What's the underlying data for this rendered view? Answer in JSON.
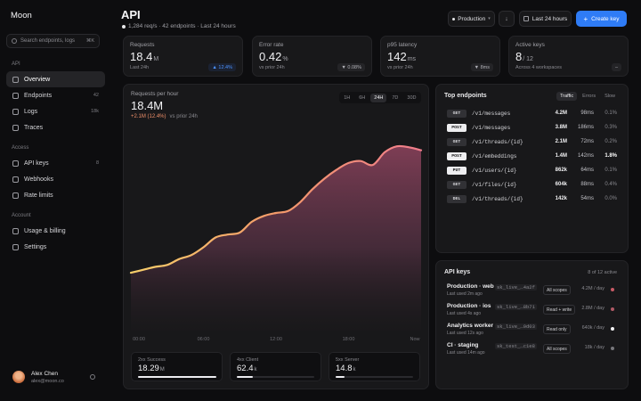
{
  "sidebar": {
    "brand": "Moon",
    "search": "Search endpoints, logs",
    "search_shortcut": "⌘K",
    "sections": [
      {
        "label": "API",
        "items": [
          {
            "label": "Overview",
            "active": true
          },
          {
            "label": "Endpoints",
            "badge": "42"
          },
          {
            "label": "Logs",
            "badge": "18k"
          },
          {
            "label": "Traces"
          }
        ]
      },
      {
        "label": "Access",
        "items": [
          {
            "label": "API keys",
            "badge": "8"
          },
          {
            "label": "Webhooks"
          },
          {
            "label": "Rate limits"
          }
        ]
      },
      {
        "label": "Account",
        "items": [
          {
            "label": "Usage & billing"
          },
          {
            "label": "Settings"
          }
        ]
      }
    ],
    "user": {
      "name": "Alex Chen",
      "email": "alex@moon.co"
    }
  },
  "header": {
    "title": "API",
    "subtitle": "1,284 req/s · 42 endpoints · Last 24 hours",
    "environment": "Production",
    "range": "Last 24 hours",
    "create": "Create key"
  },
  "kpis": [
    {
      "label": "Requests",
      "value": "18.4",
      "unit": "M",
      "note": "Last 24h",
      "delta": "▲ 12.4%",
      "trend": "up"
    },
    {
      "label": "Error rate",
      "value": "0.42",
      "unit": "%",
      "note": "vs prior 24h",
      "delta": "▼ 0.08%",
      "trend": "down"
    },
    {
      "label": "p95 latency",
      "value": "142",
      "unit": "ms",
      "note": "vs prior 24h",
      "delta": "▼ 8ms",
      "trend": "down"
    },
    {
      "label": "Active keys",
      "value": "8",
      "unit": "/ 12",
      "note": "Across 4 workspaces",
      "delta": "–",
      "trend": "flat"
    }
  ],
  "chart_data": {
    "type": "area",
    "title": "Requests per hour",
    "value": "18.4M",
    "delta": "+2.1M (12.4%)",
    "compare": "vs prior 24h",
    "ranges": [
      "1H",
      "6H",
      "24H",
      "7D",
      "30D"
    ],
    "selected_range": "24H",
    "categories": [
      "00:00",
      null,
      null,
      null,
      null,
      null,
      "06:00",
      null,
      null,
      null,
      null,
      null,
      "12:00",
      null,
      null,
      null,
      null,
      null,
      "18:00",
      null,
      null,
      null,
      null,
      null,
      "Now"
    ],
    "values": [
      5.9,
      6.2,
      6.5,
      6.7,
      7.3,
      7.7,
      8.5,
      9.5,
      9.8,
      10.0,
      11.1,
      11.7,
      12.0,
      12.2,
      13.1,
      14.4,
      15.5,
      16.4,
      17.1,
      17.3,
      16.9,
      18.2,
      18.8,
      18.7,
      18.4
    ],
    "ylim": [
      0,
      20
    ]
  },
  "breakdown": [
    {
      "label": "2xx Success",
      "value": "18.29",
      "unit": "M"
    },
    {
      "label": "4xx Client",
      "value": "62.4",
      "unit": "k"
    },
    {
      "label": "5xx Server",
      "value": "14.8",
      "unit": "k"
    }
  ],
  "endpoints": {
    "title": "Top endpoints",
    "tabs": [
      "Traffic",
      "Errors",
      "Slow"
    ],
    "selected_tab": "Traffic",
    "rows": [
      {
        "method": "GET",
        "path": "/v1/messages",
        "requests": "4.2M",
        "latency": "98ms",
        "errors": "0.1%"
      },
      {
        "method": "POST",
        "path": "/v1/messages",
        "requests": "3.8M",
        "latency": "186ms",
        "errors": "0.3%"
      },
      {
        "method": "GET",
        "path": "/v1/threads/{id}",
        "requests": "2.1M",
        "latency": "72ms",
        "errors": "0.2%"
      },
      {
        "method": "POST",
        "path": "/v1/embeddings",
        "requests": "1.4M",
        "latency": "142ms",
        "errors": "1.8%",
        "highlight": true
      },
      {
        "method": "PUT",
        "path": "/v1/users/{id}",
        "requests": "862k",
        "latency": "64ms",
        "errors": "0.1%"
      },
      {
        "method": "GET",
        "path": "/v1/files/{id}",
        "requests": "604k",
        "latency": "88ms",
        "errors": "0.4%"
      },
      {
        "method": "DEL",
        "path": "/v1/threads/{id}",
        "requests": "142k",
        "latency": "54ms",
        "errors": "0.0%"
      }
    ]
  },
  "keys": {
    "title": "API keys",
    "summary": "8 of 12 active",
    "rows": [
      {
        "name": "Production · web",
        "key": "sk_live_…4a2f",
        "last_used": "Last used 2m ago",
        "scope": "All scopes",
        "usage": "4.2M / day",
        "status_color": "#c85a66"
      },
      {
        "name": "Production · ios",
        "key": "sk_live_…8b71",
        "last_used": "Last used 4s ago",
        "scope": "Read + write",
        "usage": "2.8M / day",
        "status_color": "#b05a66"
      },
      {
        "name": "Analytics worker",
        "key": "sk_live_…9d03",
        "last_used": "Last used 12s ago",
        "scope": "Read only",
        "usage": "640k / day",
        "status_color": "#f2f2f4"
      },
      {
        "name": "CI · staging",
        "key": "sk_test_…c1e8",
        "last_used": "Last used 14m ago",
        "scope": "All scopes",
        "usage": "18k / day",
        "status_color": "#77777c"
      }
    ]
  }
}
